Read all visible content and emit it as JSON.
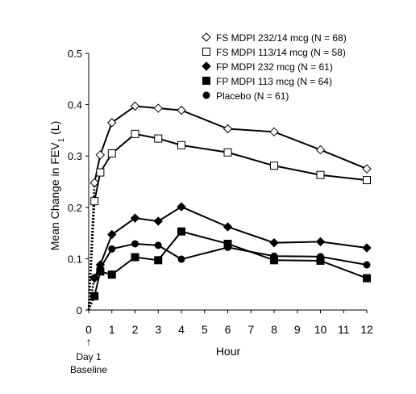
{
  "chart_data": {
    "type": "line",
    "xlabel": "Hour",
    "ylabel": "Mean Change in FEV",
    "ylabel_sub": "1",
    "ylabel_unit": "(L)",
    "xlim": [
      0,
      12
    ],
    "ylim": [
      0,
      0.5
    ],
    "x_ticks": [
      "0",
      "1",
      "2",
      "3",
      "4",
      "5",
      "6",
      "7",
      "8",
      "9",
      "10",
      "11",
      "12"
    ],
    "y_ticks": [
      "0",
      "0.1",
      "0.2",
      "0.3",
      "0.4",
      "0.5"
    ],
    "grid": false,
    "legend_position": "top-right",
    "baseline_annotation": {
      "arrow": "↑",
      "line1": "Day 1",
      "line2": "Baseline"
    },
    "series": [
      {
        "name": "FS MDPI 232/14 mcg (N = 68)",
        "marker": "diamond-open",
        "x": [
          0,
          0.25,
          0.5,
          1,
          2,
          3,
          4,
          6,
          8,
          10,
          12
        ],
        "y": [
          0,
          0.248,
          0.302,
          0.365,
          0.397,
          0.393,
          0.389,
          0.353,
          0.347,
          0.312,
          0.275
        ]
      },
      {
        "name": "FS MDPI 113/14 mcg (N = 58)",
        "marker": "square-open",
        "x": [
          0,
          0.25,
          0.5,
          1,
          2,
          3,
          4,
          6,
          8,
          10,
          12
        ],
        "y": [
          0,
          0.212,
          0.268,
          0.305,
          0.343,
          0.334,
          0.321,
          0.307,
          0.281,
          0.263,
          0.253
        ]
      },
      {
        "name": "FP MDPI 232 mcg (N = 61)",
        "marker": "diamond-filled",
        "x": [
          0,
          0.25,
          0.5,
          1,
          2,
          3,
          4,
          6,
          8,
          10,
          12
        ],
        "y": [
          0,
          0.062,
          0.088,
          0.147,
          0.179,
          0.173,
          0.201,
          0.162,
          0.131,
          0.133,
          0.121
        ]
      },
      {
        "name": "FP MDPI 113 mcg (N = 64)",
        "marker": "square-filled",
        "x": [
          0,
          0.25,
          0.5,
          1,
          2,
          3,
          4,
          6,
          8,
          10,
          12
        ],
        "y": [
          0,
          0.027,
          0.075,
          0.069,
          0.103,
          0.097,
          0.153,
          0.129,
          0.097,
          0.096,
          0.062
        ]
      },
      {
        "name": "Placebo (N = 61)",
        "marker": "circle-filled",
        "x": [
          0,
          0.25,
          0.5,
          1,
          2,
          3,
          4,
          6,
          8,
          10,
          12
        ],
        "y": [
          0,
          0.063,
          0.081,
          0.119,
          0.129,
          0.126,
          0.099,
          0.122,
          0.105,
          0.104,
          0.088
        ]
      }
    ]
  }
}
